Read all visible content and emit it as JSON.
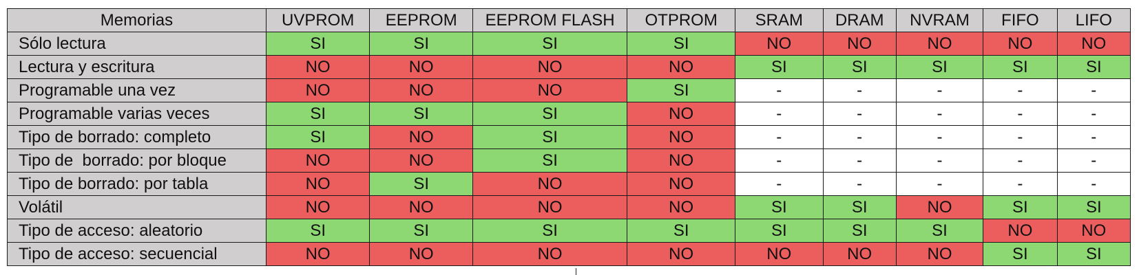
{
  "table": {
    "header": [
      "Memorias",
      "UVPROM",
      "EEPROM",
      "EEPROM FLASH",
      "OTPROM",
      "SRAM",
      "DRAM",
      "NVRAM",
      "FIFO",
      "LIFO"
    ],
    "rows": [
      {
        "label": "Sólo lectura",
        "values": [
          "SI",
          "SI",
          "SI",
          "SI",
          "NO",
          "NO",
          "NO",
          "NO",
          "NO"
        ]
      },
      {
        "label": "Lectura y escritura",
        "values": [
          "NO",
          "NO",
          "NO",
          "NO",
          "SI",
          "SI",
          "SI",
          "SI",
          "SI"
        ]
      },
      {
        "label": "Programable una vez",
        "values": [
          "NO",
          "NO",
          "NO",
          "SI",
          "-",
          "-",
          "-",
          "-",
          "-"
        ]
      },
      {
        "label": "Programable varias veces",
        "values": [
          "SI",
          "SI",
          "SI",
          "NO",
          "-",
          "-",
          "-",
          "-",
          "-"
        ]
      },
      {
        "label": "Tipo de borrado: completo",
        "values": [
          "SI",
          "NO",
          "SI",
          "NO",
          "-",
          "-",
          "-",
          "-",
          "-"
        ]
      },
      {
        "label": "Tipo de  borrado: por bloque",
        "values": [
          "NO",
          "NO",
          "SI",
          "NO",
          "-",
          "-",
          "-",
          "-",
          "-"
        ]
      },
      {
        "label": "Tipo de borrado: por tabla",
        "values": [
          "NO",
          "SI",
          "NO",
          "NO",
          "-",
          "-",
          "-",
          "-",
          "-"
        ]
      },
      {
        "label": "Volátil",
        "values": [
          "NO",
          "NO",
          "NO",
          "NO",
          "SI",
          "SI",
          "NO",
          "SI",
          "SI"
        ]
      },
      {
        "label": "Tipo de acceso: aleatorio",
        "values": [
          "SI",
          "SI",
          "SI",
          "SI",
          "SI",
          "SI",
          "SI",
          "NO",
          "NO"
        ]
      },
      {
        "label": "Tipo de acceso: secuencial",
        "values": [
          "NO",
          "NO",
          "NO",
          "NO",
          "NO",
          "NO",
          "NO",
          "SI",
          "SI"
        ]
      }
    ]
  },
  "colors": {
    "yes": "#8ed873",
    "no": "#ec5e5e",
    "header": "#d0cece",
    "none": "#ffffff",
    "border": "#1a1a1a"
  }
}
